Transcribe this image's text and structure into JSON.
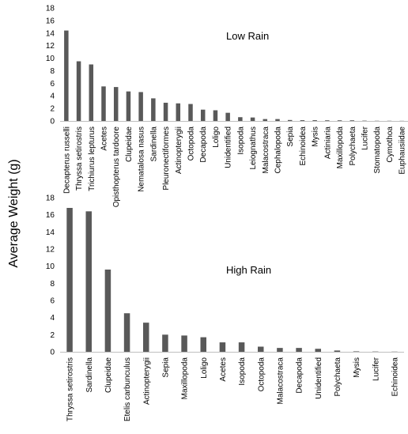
{
  "shared_ylabel": "Average Weight (g)",
  "colors": {
    "bar": "#595959",
    "axis": "#bfbfbf",
    "text": "#000000"
  },
  "chart_data": [
    {
      "type": "bar",
      "title": "Low Rain",
      "xlabel": "",
      "ylabel": "Average Weight (g)",
      "ylim": [
        0,
        18
      ],
      "yticks": [
        0,
        2,
        4,
        6,
        8,
        10,
        12,
        14,
        16,
        18
      ],
      "grid": false,
      "categories": [
        "Decapterus russelli",
        "Thryssa setirostris",
        "Trichiurus lepturus",
        "Acetes",
        "Opisthopterus tardoore",
        "Clupeidae",
        "Nematalosa nasus",
        "Sardinella",
        "Pleuronectiformes",
        "Actinopterygii",
        "Octopoda",
        "Decapoda",
        "Loligo",
        "Unidentified",
        "Isopoda",
        "Leiognathus",
        "Malacostraca",
        "Cephalopoda",
        "Sepia",
        "Echinoidea",
        "Mysis",
        "Actiniaria",
        "Maxillopoda",
        "Polychaeta",
        "Lucifer",
        "Stomatopoda",
        "Cymothoa",
        "Euphausiidae"
      ],
      "values": [
        14.4,
        9.5,
        9.0,
        5.5,
        5.4,
        4.7,
        4.6,
        3.6,
        2.9,
        2.8,
        2.7,
        1.8,
        1.7,
        1.3,
        0.6,
        0.55,
        0.3,
        0.3,
        0.15,
        0.12,
        0.12,
        0.1,
        0.1,
        0.1,
        0.05,
        0.03,
        0.03,
        0.02
      ]
    },
    {
      "type": "bar",
      "title": "High Rain",
      "xlabel": "",
      "ylabel": "Average Weight (g)",
      "ylim": [
        0,
        18
      ],
      "yticks": [
        0,
        2,
        4,
        6,
        8,
        10,
        12,
        14,
        16,
        18
      ],
      "grid": false,
      "categories": [
        "Thryssa setirostris",
        "Sardinella",
        "Clupeidae",
        "Etelis carbunculus",
        "Actinopterygii",
        "Sepia",
        "Maxillopoda",
        "Loligo",
        "Acetes",
        "Isopoda",
        "Octopoda",
        "Malacostraca",
        "Decapoda",
        "Unidentified",
        "Polychaeta",
        "Mysis",
        "Lucifer",
        "Echinoidea"
      ],
      "values": [
        16.8,
        16.4,
        9.6,
        4.5,
        3.4,
        2.0,
        1.9,
        1.7,
        1.1,
        1.1,
        0.6,
        0.45,
        0.45,
        0.35,
        0.15,
        0.05,
        0.03,
        0.02
      ]
    }
  ]
}
